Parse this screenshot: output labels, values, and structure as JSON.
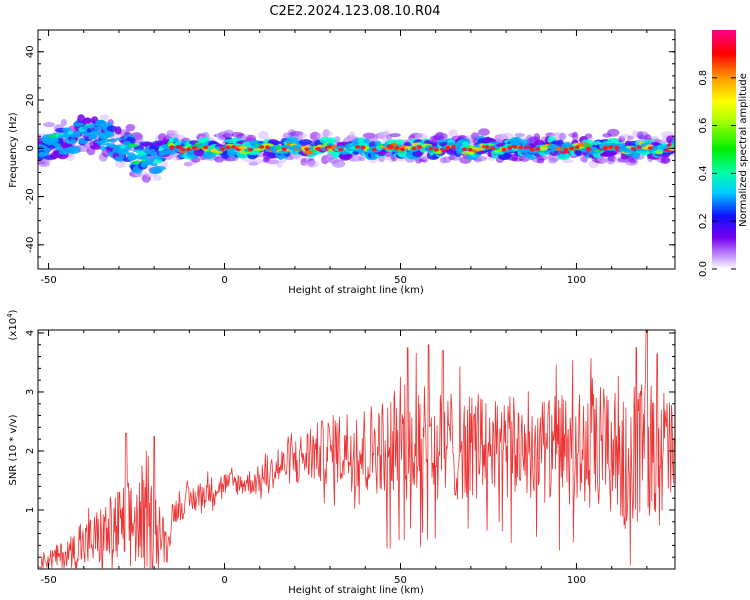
{
  "title": "C2E2.2024.123.08.10.R04",
  "colorbar": {
    "label": "Normalized spectral amplitude",
    "ticks": [
      0.0,
      0.2,
      0.4,
      0.6,
      0.8
    ],
    "tick_labels": [
      "0.0",
      "0.2",
      "0.4",
      "0.6",
      "0.8"
    ],
    "range": [
      0,
      1
    ]
  },
  "chart_data": [
    {
      "type": "heatmap",
      "xlabel": "Height of straight line (km)",
      "ylabel": "Frequency (Hz)",
      "xlim": [
        -53,
        128
      ],
      "ylim": [
        -50,
        49
      ],
      "xticks": [
        -50,
        0,
        50,
        100
      ],
      "xtick_labels": [
        "-50",
        "0",
        "50",
        "100"
      ],
      "yticks": [
        -40,
        -20,
        0,
        20,
        40
      ],
      "ytick_labels": [
        "-40",
        "-20",
        "0",
        "20",
        "40"
      ],
      "band": {
        "center_hz": 0,
        "core_halfwidth_hz": 2,
        "spread_halfwidth_hz": 8,
        "segments": [
          {
            "x_start": -52,
            "x_end": -17,
            "character": "scattered, broad, noisy",
            "offset_hz_start": -4,
            "offset_hz_end": 6
          },
          {
            "x_start": -17,
            "x_end": 128,
            "character": "narrow line near 0 Hz",
            "offset_hz_start": 0,
            "offset_hz_end": 0
          }
        ]
      }
    },
    {
      "type": "line",
      "xlabel": "Height of straight line (km)",
      "ylabel": "SNR (10 * v/v)",
      "y_scale_label": "(x10^4)",
      "y_scale_base": "(x10",
      "y_scale_exp": "4",
      "xlim": [
        -53,
        128
      ],
      "ylim": [
        0,
        4.05
      ],
      "xticks": [
        -50,
        0,
        50,
        100
      ],
      "xtick_labels": [
        "-50",
        "0",
        "50",
        "100"
      ],
      "yticks": [
        1,
        2,
        3,
        4
      ],
      "ytick_labels": [
        "1",
        "2",
        "3",
        "4"
      ],
      "color": "#ee3333",
      "envelope": {
        "x": [
          -53,
          -45,
          -40,
          -35,
          -30,
          -25,
          -20,
          -16,
          -15,
          -10,
          -5,
          0,
          5,
          10,
          15,
          20,
          25,
          30,
          35,
          40,
          45,
          50,
          55,
          60,
          65,
          70,
          75,
          80,
          85,
          90,
          95,
          100,
          105,
          110,
          115,
          120,
          125,
          128
        ],
        "mean": [
          0.12,
          0.25,
          0.4,
          0.55,
          0.7,
          0.8,
          0.7,
          0.35,
          0.95,
          1.15,
          1.3,
          1.45,
          1.45,
          1.5,
          1.7,
          1.85,
          1.95,
          2.0,
          2.05,
          2.0,
          2.1,
          2.1,
          2.15,
          2.0,
          2.1,
          2.1,
          2.05,
          2.0,
          2.1,
          2.0,
          2.05,
          2.0,
          1.95,
          2.05,
          2.0,
          2.1,
          2.0,
          2.1
        ],
        "spread": [
          0.12,
          0.25,
          0.4,
          0.55,
          0.7,
          0.8,
          0.8,
          0.25,
          0.2,
          0.25,
          0.25,
          0.2,
          0.2,
          0.25,
          0.3,
          0.4,
          0.5,
          0.6,
          0.7,
          0.8,
          0.8,
          0.9,
          1.0,
          1.0,
          0.95,
          0.95,
          0.9,
          0.9,
          0.9,
          0.9,
          0.9,
          1.0,
          1.1,
          1.2,
          1.3,
          1.2,
          1.1,
          1.0
        ]
      },
      "peaks": [
        [
          -28,
          2.3
        ],
        [
          -20,
          2.25
        ],
        [
          52,
          3.75
        ],
        [
          58,
          3.8
        ],
        [
          62,
          3.7
        ],
        [
          120,
          4.05
        ],
        [
          117,
          3.75
        ],
        [
          123,
          3.65
        ]
      ]
    }
  ]
}
